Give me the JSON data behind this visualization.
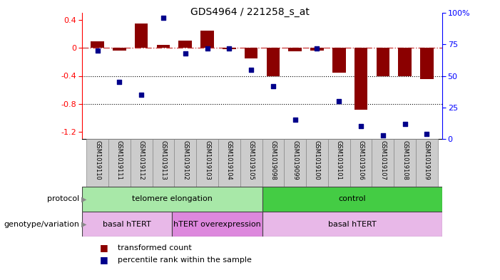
{
  "title": "GDS4964 / 221258_s_at",
  "samples": [
    "GSM1019110",
    "GSM1019111",
    "GSM1019112",
    "GSM1019113",
    "GSM1019102",
    "GSM1019103",
    "GSM1019104",
    "GSM1019105",
    "GSM1019098",
    "GSM1019099",
    "GSM1019100",
    "GSM1019101",
    "GSM1019106",
    "GSM1019107",
    "GSM1019108",
    "GSM1019109"
  ],
  "transformed_count": [
    0.09,
    -0.04,
    0.35,
    0.04,
    0.1,
    0.25,
    -0.02,
    -0.15,
    -0.4,
    -0.05,
    -0.04,
    -0.35,
    -0.88,
    -0.4,
    -0.4,
    -0.45
  ],
  "percentile_rank": [
    70,
    45,
    35,
    96,
    68,
    72,
    72,
    55,
    42,
    15,
    72,
    30,
    10,
    3,
    12,
    4
  ],
  "protocol_groups": [
    {
      "label": "telomere elongation",
      "start": 0,
      "end": 8,
      "color": "#a8e8a8"
    },
    {
      "label": "control",
      "start": 8,
      "end": 16,
      "color": "#44cc44"
    }
  ],
  "genotype_groups": [
    {
      "label": "basal hTERT",
      "start": 0,
      "end": 4,
      "color": "#e8b8e8"
    },
    {
      "label": "hTERT overexpression",
      "start": 4,
      "end": 8,
      "color": "#dd88dd"
    },
    {
      "label": "basal hTERT",
      "start": 8,
      "end": 16,
      "color": "#e8b8e8"
    }
  ],
  "ylim_left": [
    -1.3,
    0.5
  ],
  "ylim_right": [
    0,
    100
  ],
  "yticks_left": [
    -1.2,
    -0.8,
    -0.4,
    0.0,
    0.4
  ],
  "yticks_right": [
    0,
    25,
    50,
    75,
    100
  ],
  "bar_color": "#8b0000",
  "scatter_color": "#00008b",
  "bg_color": "#ffffff",
  "dashed_line_color": "#cc4444",
  "label_transformed": "transformed count",
  "label_percentile": "percentile rank within the sample",
  "protocol_label": "protocol",
  "genotype_label": "genotype/variation"
}
